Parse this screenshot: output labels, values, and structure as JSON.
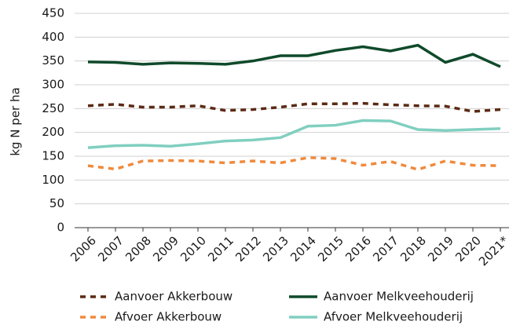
{
  "chart_data": {
    "type": "line",
    "y_label": "kg N per ha",
    "categories": [
      "2006",
      "2007",
      "2008",
      "2009",
      "2010",
      "2011",
      "2012",
      "2013",
      "2014",
      "2015",
      "2016",
      "2017",
      "2018",
      "2019",
      "2020",
      "2021*"
    ],
    "series": [
      {
        "name": "Aanvoer Akkerbouw",
        "color": "#5b2a14",
        "dashed": true,
        "values": [
          256,
          259,
          253,
          253,
          256,
          246,
          248,
          253,
          260,
          260,
          261,
          258,
          256,
          255,
          244,
          248
        ]
      },
      {
        "name": "Aanvoer Melkveehouderij",
        "color": "#0f4a2a",
        "dashed": false,
        "values": [
          348,
          347,
          343,
          346,
          345,
          343,
          350,
          361,
          361,
          372,
          380,
          371,
          383,
          347,
          364,
          338
        ]
      },
      {
        "name": "Afvoer Akkerbouw",
        "color": "#f08a3c",
        "dashed": true,
        "values": [
          130,
          123,
          140,
          141,
          140,
          136,
          140,
          136,
          147,
          145,
          131,
          139,
          122,
          140,
          131,
          130
        ]
      },
      {
        "name": "Afvoer Melkveehouderij",
        "color": "#80cfc0",
        "dashed": false,
        "values": [
          168,
          172,
          173,
          171,
          176,
          182,
          184,
          189,
          213,
          215,
          225,
          224,
          206,
          204,
          206,
          208
        ]
      }
    ],
    "ylim": [
      0,
      450
    ],
    "yticks": [
      0,
      50,
      100,
      150,
      200,
      250,
      300,
      350,
      400,
      450
    ],
    "grid": true
  }
}
